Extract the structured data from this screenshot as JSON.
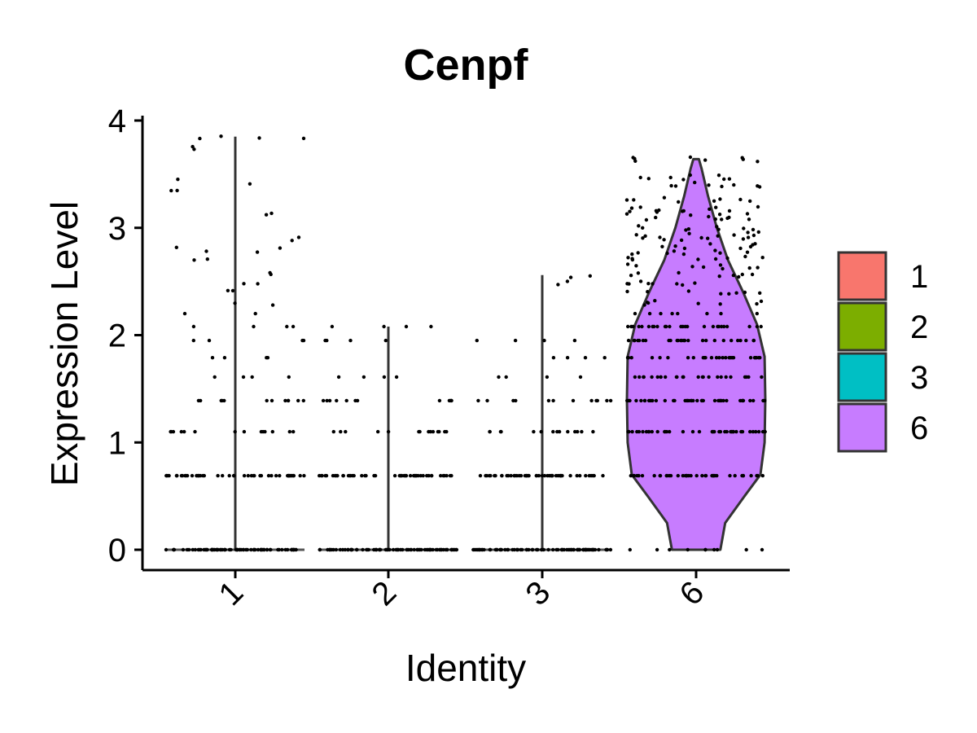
{
  "chart_data": {
    "type": "violin",
    "title": "Cenpf",
    "xlabel": "Identity",
    "ylabel": "Expression Level",
    "ylim": [
      0,
      4
    ],
    "yticks": [
      0,
      1,
      2,
      3,
      4
    ],
    "categories": [
      "1",
      "2",
      "3",
      "6"
    ],
    "colors": [
      "#F8766D",
      "#7CAE00",
      "#00BFC4",
      "#C77CFF"
    ],
    "legend": {
      "position": "right",
      "entries": [
        "1",
        "2",
        "3",
        "6"
      ]
    },
    "grid": false,
    "series": [
      {
        "name": "1",
        "max": 3.85,
        "levels": [
          0,
          0.69,
          1.1,
          1.39,
          1.61,
          1.79,
          1.95,
          2.08,
          2.2,
          2.3,
          2.4,
          2.48,
          2.56,
          2.71,
          2.77,
          2.83,
          2.89,
          3.14,
          3.33,
          3.43,
          3.74,
          3.83,
          3.85
        ]
      },
      {
        "name": "2",
        "max": 2.08,
        "levels": [
          0,
          0.69,
          1.1,
          1.39,
          1.61,
          1.95,
          2.08
        ]
      },
      {
        "name": "3",
        "max": 2.56,
        "levels": [
          0,
          0.69,
          1.1,
          1.39,
          1.61,
          1.79,
          1.95,
          2.48,
          2.56
        ]
      },
      {
        "name": "6",
        "max": 3.64,
        "levels": [
          0,
          0.69,
          1.1,
          1.39,
          1.61,
          1.79,
          1.95,
          2.08,
          2.2,
          2.3,
          2.4,
          2.48,
          2.56,
          2.64,
          2.71,
          2.77,
          2.83,
          2.89,
          2.94,
          3.0,
          3.09,
          3.14,
          3.18,
          3.26,
          3.4,
          3.47,
          3.64
        ]
      }
    ]
  }
}
